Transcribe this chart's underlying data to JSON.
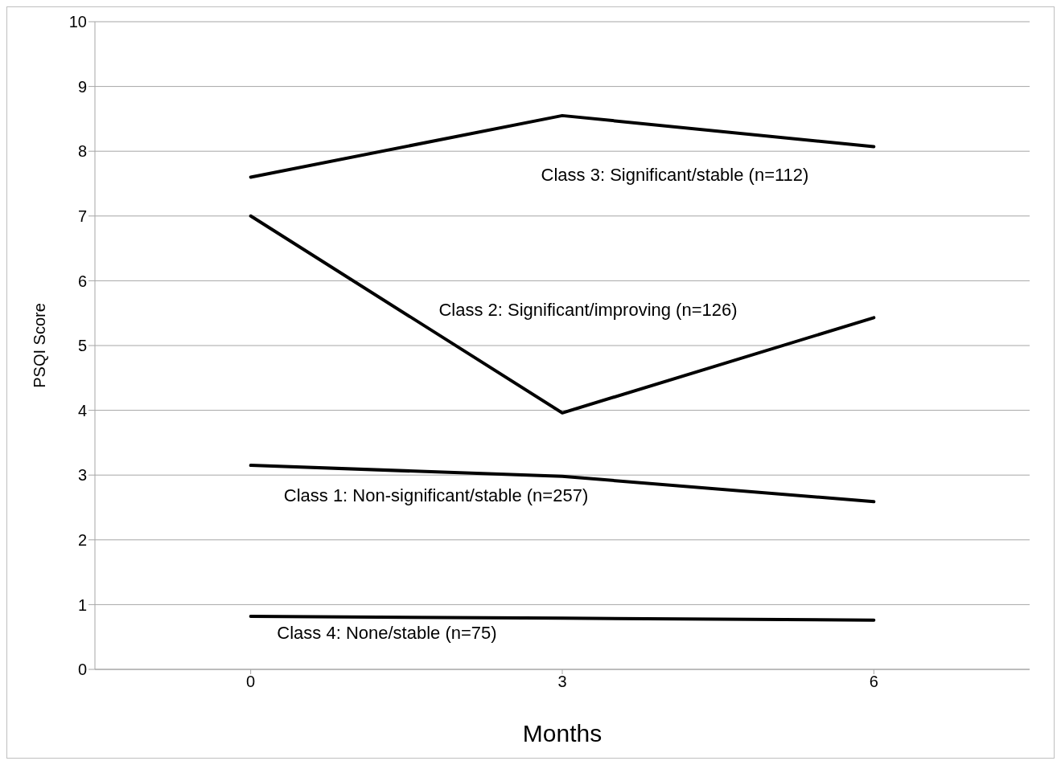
{
  "chart_data": {
    "type": "line",
    "xlabel": "Months",
    "ylabel": "PSQI Score",
    "categories": [
      "0",
      "3",
      "6"
    ],
    "series": [
      {
        "name": "Class 3: Significant/stable (n=112)",
        "color": "#000000",
        "values": [
          7.6,
          8.55,
          8.07
        ]
      },
      {
        "name": "Class 2: Significant/improving (n=126)",
        "color": "#000000",
        "values": [
          7.0,
          3.96,
          5.43
        ]
      },
      {
        "name": "Class 1: Non-significant/stable (n=257)",
        "color": "#000000",
        "values": [
          3.15,
          2.98,
          2.59
        ]
      },
      {
        "name": "Class 4: None/stable (n=75)",
        "color": "#000000",
        "values": [
          0.82,
          0.79,
          0.76
        ]
      }
    ],
    "ylim": [
      0,
      10
    ],
    "yticks": [
      0,
      1,
      2,
      3,
      4,
      5,
      6,
      7,
      8,
      9,
      10
    ],
    "grid": "y",
    "marker": "none",
    "line_style": "solid"
  }
}
